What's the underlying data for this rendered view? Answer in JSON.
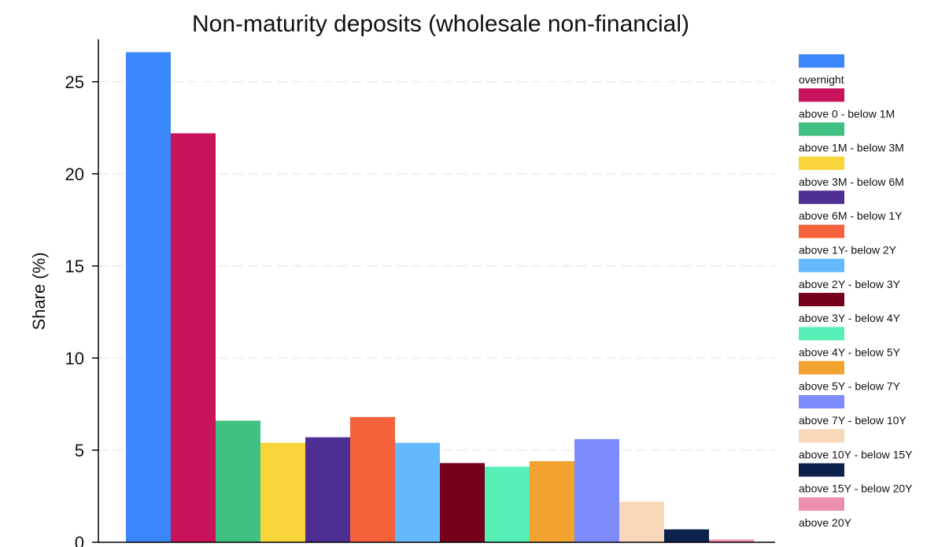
{
  "chart_data": {
    "type": "bar",
    "title": "Non-maturity deposits (wholesale non-financial)",
    "xlabel": "",
    "ylabel": "Share (%)",
    "ylim": [
      0,
      27.3
    ],
    "yticks": [
      0,
      5,
      10,
      15,
      20,
      25
    ],
    "grid": true,
    "legend_position": "right",
    "categories": [
      "overnight",
      "above 0 - below 1M",
      "above 1M - below 3M",
      "above 3M - below 6M",
      "above 6M - below 1Y",
      "above 1Y- below 2Y",
      "above 2Y - below 3Y",
      "above 3Y - below 4Y",
      "above 4Y - below 5Y",
      "above 5Y - below 7Y",
      "above 7Y - below 10Y",
      "above 10Y - below 15Y",
      "above 15Y - below 20Y",
      "above 20Y"
    ],
    "values": [
      26.6,
      22.2,
      6.6,
      5.4,
      5.7,
      6.8,
      5.4,
      4.3,
      4.1,
      4.4,
      5.6,
      2.2,
      0.7,
      0.15
    ],
    "colors": [
      "#3a87f9",
      "#c8125a",
      "#40c082",
      "#f9d53a",
      "#4f2e93",
      "#f5623c",
      "#63b9fc",
      "#76001c",
      "#56efb6",
      "#f2a22e",
      "#7c8cfd",
      "#f8d8b8",
      "#0c214c",
      "#ec8fac"
    ]
  }
}
